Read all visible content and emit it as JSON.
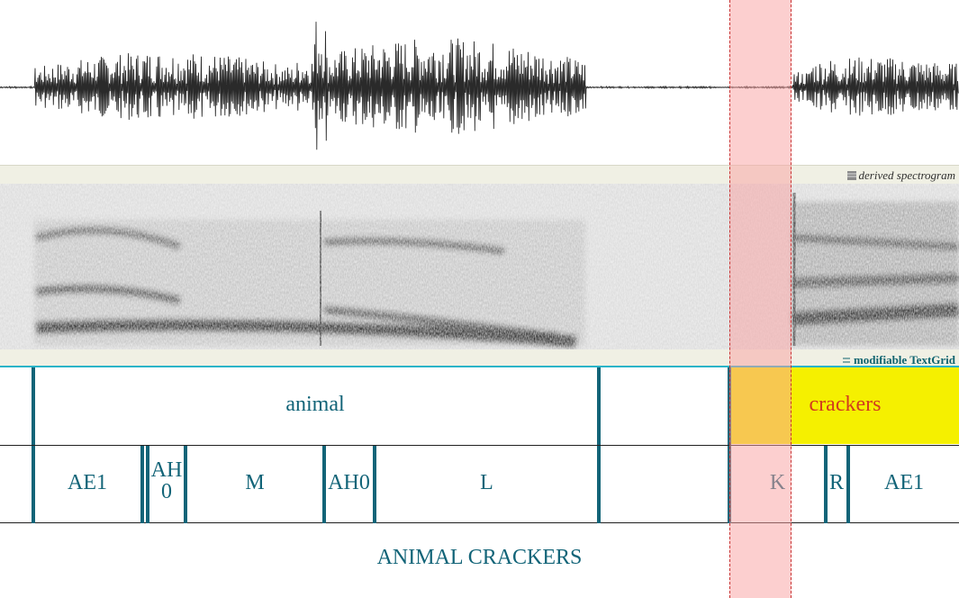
{
  "panels": {
    "spectrogram_label": "derived spectrogram",
    "textgrid_label": "modifiable TextGrid"
  },
  "tiers": {
    "words": [
      {
        "label": "animal"
      },
      {
        "label": "crackers"
      }
    ],
    "phones": [
      {
        "label": "AE1"
      },
      {
        "label": "AH\n0"
      },
      {
        "label": "M"
      },
      {
        "label": "AH0"
      },
      {
        "label": "L"
      },
      {
        "label": "K"
      },
      {
        "label": "R"
      },
      {
        "label": "AE1"
      }
    ],
    "utterance": "ANIMAL CRACKERS"
  },
  "colors": {
    "tier_text": "#126478",
    "selected_interval_text": "#d23c1e",
    "selected_interval_fill": "#f5f000",
    "selection_overlay": "#faa0a0"
  }
}
